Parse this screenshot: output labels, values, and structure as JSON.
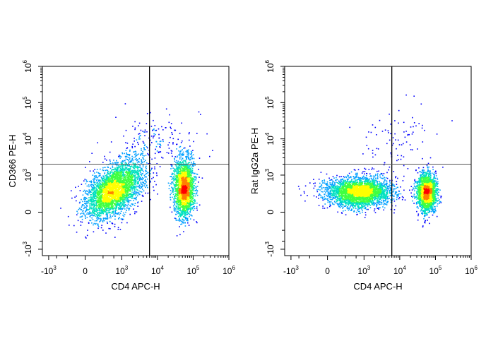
{
  "chart_data": [
    {
      "type": "scatter",
      "subtype": "flow-cytometry density plot",
      "colormap": [
        "#0000ff",
        "#00a0ff",
        "#00e0c0",
        "#40ff40",
        "#ffff00",
        "#ff8000",
        "#ff0000"
      ],
      "xlabel": "CD4 APC-H",
      "ylabel": "CD366 PE-H",
      "x_scale": "biexponential",
      "y_scale": "biexponential",
      "xlim": [
        -1500,
        1000000
      ],
      "ylim": [
        -1500,
        1000000
      ],
      "x_ticks": [
        {
          "base": "-10",
          "exp": "3",
          "value": -1000
        },
        {
          "base": "0",
          "exp": "",
          "value": 0
        },
        {
          "base": "10",
          "exp": "3",
          "value": 1000
        },
        {
          "base": "10",
          "exp": "4",
          "value": 10000
        },
        {
          "base": "10",
          "exp": "5",
          "value": 100000
        },
        {
          "base": "10",
          "exp": "6",
          "value": 1000000
        }
      ],
      "y_ticks": [
        {
          "base": "-10",
          "exp": "3",
          "value": -1000
        },
        {
          "base": "0",
          "exp": "",
          "value": 0
        },
        {
          "base": "10",
          "exp": "3",
          "value": 1000
        },
        {
          "base": "10",
          "exp": "4",
          "value": 10000
        },
        {
          "base": "10",
          "exp": "5",
          "value": 100000
        },
        {
          "base": "10",
          "exp": "6",
          "value": 1000000
        }
      ],
      "quadrant_gate": {
        "x": 6000,
        "y": 2000
      },
      "populations": [
        {
          "x_center": 600,
          "y_center": 400,
          "x_spread": 0.9,
          "y_spread": 0.75,
          "tilt": 0.45,
          "count": 3400
        },
        {
          "x_center": 55000,
          "y_center": 450,
          "x_spread": 0.32,
          "y_spread": 0.9,
          "tilt": 0.0,
          "count": 2200
        },
        {
          "x_center": 8000,
          "y_center": 8000,
          "x_spread": 1.3,
          "y_spread": 0.9,
          "tilt": 0.0,
          "count": 180
        }
      ]
    },
    {
      "type": "scatter",
      "subtype": "flow-cytometry density plot",
      "colormap": [
        "#0000ff",
        "#00a0ff",
        "#00e0c0",
        "#40ff40",
        "#ffff00",
        "#ff8000",
        "#ff0000"
      ],
      "xlabel": "CD4 APC-H",
      "ylabel": "Rat IgG2a PE-H",
      "x_scale": "biexponential",
      "y_scale": "biexponential",
      "xlim": [
        -1500,
        1000000
      ],
      "ylim": [
        -1500,
        1000000
      ],
      "x_ticks": [
        {
          "base": "-10",
          "exp": "3",
          "value": -1000
        },
        {
          "base": "0",
          "exp": "",
          "value": 0
        },
        {
          "base": "10",
          "exp": "3",
          "value": 1000
        },
        {
          "base": "10",
          "exp": "4",
          "value": 10000
        },
        {
          "base": "10",
          "exp": "5",
          "value": 100000
        },
        {
          "base": "10",
          "exp": "6",
          "value": 1000000
        }
      ],
      "y_ticks": [
        {
          "base": "-10",
          "exp": "3",
          "value": -1000
        },
        {
          "base": "0",
          "exp": "",
          "value": 0
        },
        {
          "base": "10",
          "exp": "3",
          "value": 1000
        },
        {
          "base": "10",
          "exp": "4",
          "value": 10000
        },
        {
          "base": "10",
          "exp": "5",
          "value": 100000
        },
        {
          "base": "10",
          "exp": "6",
          "value": 1000000
        }
      ],
      "quadrant_gate": {
        "x": 6000,
        "y": 2000
      },
      "populations": [
        {
          "x_center": 700,
          "y_center": 350,
          "x_spread": 1.0,
          "y_spread": 0.45,
          "tilt": 0.0,
          "count": 3200
        },
        {
          "x_center": 55000,
          "y_center": 350,
          "x_spread": 0.3,
          "y_spread": 0.6,
          "tilt": 0.0,
          "count": 2000
        },
        {
          "x_center": 8000,
          "y_center": 10000,
          "x_spread": 1.2,
          "y_spread": 1.1,
          "tilt": 0.0,
          "count": 90
        }
      ]
    }
  ]
}
